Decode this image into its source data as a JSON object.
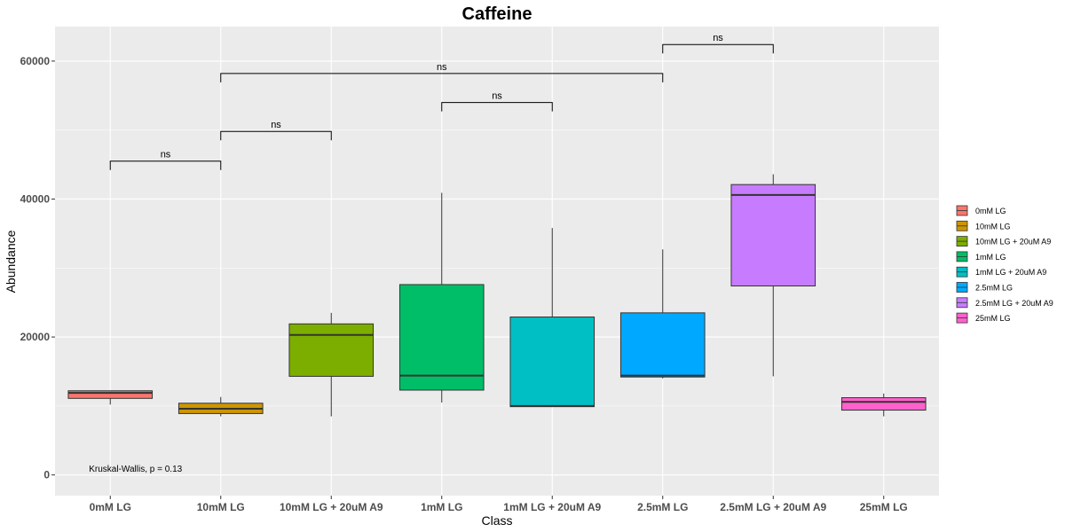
{
  "chart_data": {
    "type": "box",
    "title": "Caffeine",
    "xlabel": "Class",
    "ylabel": "Abundance",
    "ylim": [
      -3000,
      65000
    ],
    "yticks": [
      0,
      20000,
      40000,
      60000
    ],
    "categories": [
      "0mM LG",
      "10mM LG",
      "10mM LG + 20uM A9",
      "1mM LG",
      "1mM LG + 20uM A9",
      "2.5mM LG",
      "2.5mM LG + 20uM A9",
      "25mM LG"
    ],
    "boxes": [
      {
        "name": "0mM LG",
        "color": "#F8766D",
        "whisker_low": 10200,
        "q1": 11100,
        "median": 11900,
        "q3": 12200,
        "whisker_high": 12200
      },
      {
        "name": "10mM LG",
        "color": "#CD9600",
        "whisker_low": 8500,
        "q1": 8900,
        "median": 9600,
        "q3": 10400,
        "whisker_high": 11300
      },
      {
        "name": "10mM LG + 20uM A9",
        "color": "#7CAE00",
        "whisker_low": 8500,
        "q1": 14300,
        "median": 20300,
        "q3": 21900,
        "whisker_high": 23500
      },
      {
        "name": "1mM LG",
        "color": "#00BE67",
        "whisker_low": 10500,
        "q1": 12300,
        "median": 14400,
        "q3": 27600,
        "whisker_high": 40900
      },
      {
        "name": "1mM LG + 20uM A9",
        "color": "#00BFC4",
        "whisker_low": 9900,
        "q1": 9900,
        "median": 10000,
        "q3": 22900,
        "whisker_high": 35800
      },
      {
        "name": "2.5mM LG",
        "color": "#00A9FF",
        "whisker_low": 14000,
        "q1": 14200,
        "median": 14400,
        "q3": 23500,
        "whisker_high": 32700
      },
      {
        "name": "2.5mM LG + 20uM A9",
        "color": "#C77CFF",
        "whisker_low": 14300,
        "q1": 27400,
        "median": 40600,
        "q3": 42100,
        "whisker_high": 43600
      },
      {
        "name": "25mM LG",
        "color": "#FF61CC",
        "whisker_low": 8500,
        "q1": 9400,
        "median": 10600,
        "q3": 11200,
        "whisker_high": 11800
      }
    ],
    "comparisons": [
      {
        "from": "0mM LG",
        "to": "10mM LG",
        "y": 45500,
        "label": "ns"
      },
      {
        "from": "10mM LG",
        "to": "10mM LG + 20uM A9",
        "y": 49800,
        "label": "ns"
      },
      {
        "from": "1mM LG",
        "to": "1mM LG + 20uM A9",
        "y": 54000,
        "label": "ns"
      },
      {
        "from": "10mM LG",
        "to": "2.5mM LG",
        "y": 58200,
        "label": "ns"
      },
      {
        "from": "2.5mM LG",
        "to": "2.5mM LG + 20uM A9",
        "y": 62400,
        "label": "ns"
      }
    ],
    "annotation": "Kruskal-Wallis, p = 0.13",
    "annotation_at": {
      "category": "0mM LG",
      "y": 500
    },
    "legend_position": "right",
    "grid": true,
    "panel_background": "#EBEBEB"
  }
}
